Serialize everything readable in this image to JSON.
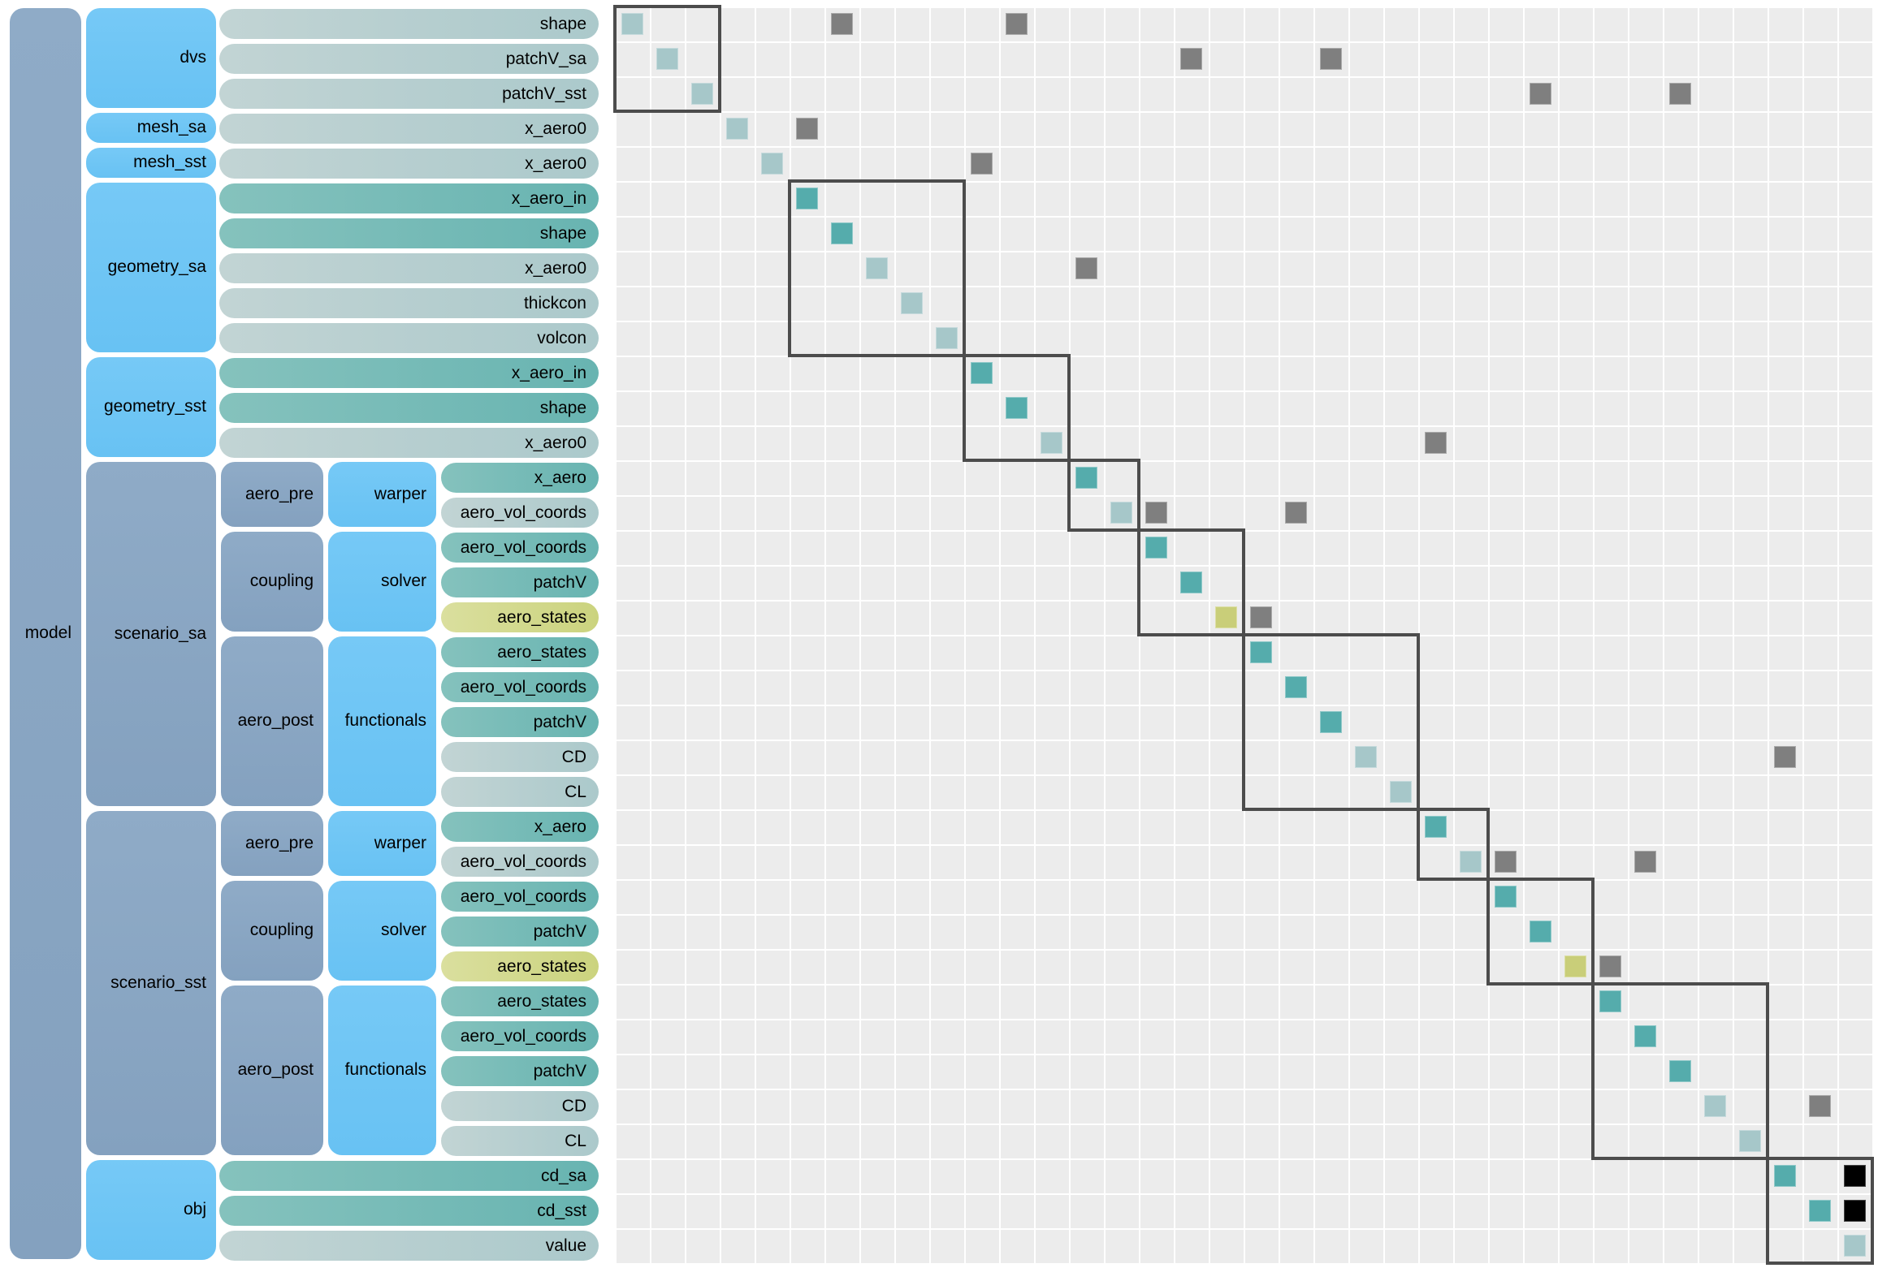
{
  "root_label": "model",
  "colors": {
    "page_bg": "#ffffff",
    "group_slate": "#88a5c2",
    "component_blue": "#6fc6f4",
    "pill_input": "#74b9b5",
    "pill_output": "#b5cdcf",
    "pill_state": "#d0d88c",
    "diag_input": "#55acac",
    "diag_output": "#a6c7c9",
    "diag_state": "#c9ce79",
    "connection_gray": "#7f7f7f",
    "connection_black": "#000000",
    "matrix_bg": "#ececec",
    "grid_line": "#ffffff",
    "component_box_border": "#4c4c4c",
    "label_text": "#000000"
  },
  "rows": [
    {
      "label": "shape",
      "kind": "out"
    },
    {
      "label": "patchV_sa",
      "kind": "out"
    },
    {
      "label": "patchV_sst",
      "kind": "out"
    },
    {
      "label": "x_aero0",
      "kind": "out"
    },
    {
      "label": "x_aero0",
      "kind": "out"
    },
    {
      "label": "x_aero_in",
      "kind": "in"
    },
    {
      "label": "shape",
      "kind": "in"
    },
    {
      "label": "x_aero0",
      "kind": "out"
    },
    {
      "label": "thickcon",
      "kind": "out"
    },
    {
      "label": "volcon",
      "kind": "out"
    },
    {
      "label": "x_aero_in",
      "kind": "in"
    },
    {
      "label": "shape",
      "kind": "in"
    },
    {
      "label": "x_aero0",
      "kind": "out"
    },
    {
      "label": "x_aero",
      "kind": "in"
    },
    {
      "label": "aero_vol_coords",
      "kind": "out"
    },
    {
      "label": "aero_vol_coords",
      "kind": "in"
    },
    {
      "label": "patchV",
      "kind": "in"
    },
    {
      "label": "aero_states",
      "kind": "state"
    },
    {
      "label": "aero_states",
      "kind": "in"
    },
    {
      "label": "aero_vol_coords",
      "kind": "in"
    },
    {
      "label": "patchV",
      "kind": "in"
    },
    {
      "label": "CD",
      "kind": "out"
    },
    {
      "label": "CL",
      "kind": "out"
    },
    {
      "label": "x_aero",
      "kind": "in"
    },
    {
      "label": "aero_vol_coords",
      "kind": "out"
    },
    {
      "label": "aero_vol_coords",
      "kind": "in"
    },
    {
      "label": "patchV",
      "kind": "in"
    },
    {
      "label": "aero_states",
      "kind": "state"
    },
    {
      "label": "aero_states",
      "kind": "in"
    },
    {
      "label": "aero_vol_coords",
      "kind": "in"
    },
    {
      "label": "patchV",
      "kind": "in"
    },
    {
      "label": "CD",
      "kind": "out"
    },
    {
      "label": "CL",
      "kind": "out"
    },
    {
      "label": "cd_sa",
      "kind": "in"
    },
    {
      "label": "cd_sst",
      "kind": "in"
    },
    {
      "label": "value",
      "kind": "out"
    }
  ],
  "tree": [
    {
      "label": "dvs",
      "rows": [
        0,
        3
      ],
      "children": null
    },
    {
      "label": "mesh_sa",
      "rows": [
        3,
        1
      ],
      "children": null
    },
    {
      "label": "mesh_sst",
      "rows": [
        4,
        1
      ],
      "children": null
    },
    {
      "label": "geometry_sa",
      "rows": [
        5,
        5
      ],
      "children": null
    },
    {
      "label": "geometry_sst",
      "rows": [
        10,
        3
      ],
      "children": null
    },
    {
      "label": "scenario_sa",
      "rows": [
        13,
        10
      ],
      "children": [
        {
          "label": "aero_pre",
          "rows": [
            13,
            2
          ],
          "component": "warper"
        },
        {
          "label": "coupling",
          "rows": [
            15,
            3
          ],
          "component": "solver"
        },
        {
          "label": "aero_post",
          "rows": [
            18,
            5
          ],
          "component": "functionals"
        }
      ]
    },
    {
      "label": "scenario_sst",
      "rows": [
        23,
        10
      ],
      "children": [
        {
          "label": "aero_pre",
          "rows": [
            23,
            2
          ],
          "component": "warper"
        },
        {
          "label": "coupling",
          "rows": [
            25,
            3
          ],
          "component": "solver"
        },
        {
          "label": "aero_post",
          "rows": [
            28,
            5
          ],
          "component": "functionals"
        }
      ]
    },
    {
      "label": "obj",
      "rows": [
        33,
        3
      ],
      "children": null
    }
  ],
  "matrix": {
    "size": 36,
    "component_boxes": [
      {
        "start": 0,
        "span": 3
      },
      {
        "start": 5,
        "span": 5
      },
      {
        "start": 10,
        "span": 3
      },
      {
        "start": 13,
        "span": 2
      },
      {
        "start": 15,
        "span": 3
      },
      {
        "start": 18,
        "span": 5
      },
      {
        "start": 23,
        "span": 2
      },
      {
        "start": 25,
        "span": 3
      },
      {
        "start": 28,
        "span": 5
      },
      {
        "start": 33,
        "span": 3
      }
    ],
    "connections": [
      {
        "r": 0,
        "c": 6,
        "color": "gray"
      },
      {
        "r": 0,
        "c": 11,
        "color": "gray"
      },
      {
        "r": 1,
        "c": 16,
        "color": "gray"
      },
      {
        "r": 1,
        "c": 20,
        "color": "gray"
      },
      {
        "r": 2,
        "c": 26,
        "color": "gray"
      },
      {
        "r": 2,
        "c": 30,
        "color": "gray"
      },
      {
        "r": 3,
        "c": 5,
        "color": "gray"
      },
      {
        "r": 4,
        "c": 10,
        "color": "gray"
      },
      {
        "r": 7,
        "c": 13,
        "color": "gray"
      },
      {
        "r": 12,
        "c": 23,
        "color": "gray"
      },
      {
        "r": 14,
        "c": 15,
        "color": "gray"
      },
      {
        "r": 14,
        "c": 19,
        "color": "gray"
      },
      {
        "r": 17,
        "c": 18,
        "color": "gray"
      },
      {
        "r": 21,
        "c": 33,
        "color": "gray"
      },
      {
        "r": 24,
        "c": 25,
        "color": "gray"
      },
      {
        "r": 24,
        "c": 29,
        "color": "gray"
      },
      {
        "r": 27,
        "c": 28,
        "color": "gray"
      },
      {
        "r": 31,
        "c": 34,
        "color": "gray"
      },
      {
        "r": 33,
        "c": 35,
        "color": "black"
      },
      {
        "r": 34,
        "c": 35,
        "color": "black"
      }
    ]
  }
}
